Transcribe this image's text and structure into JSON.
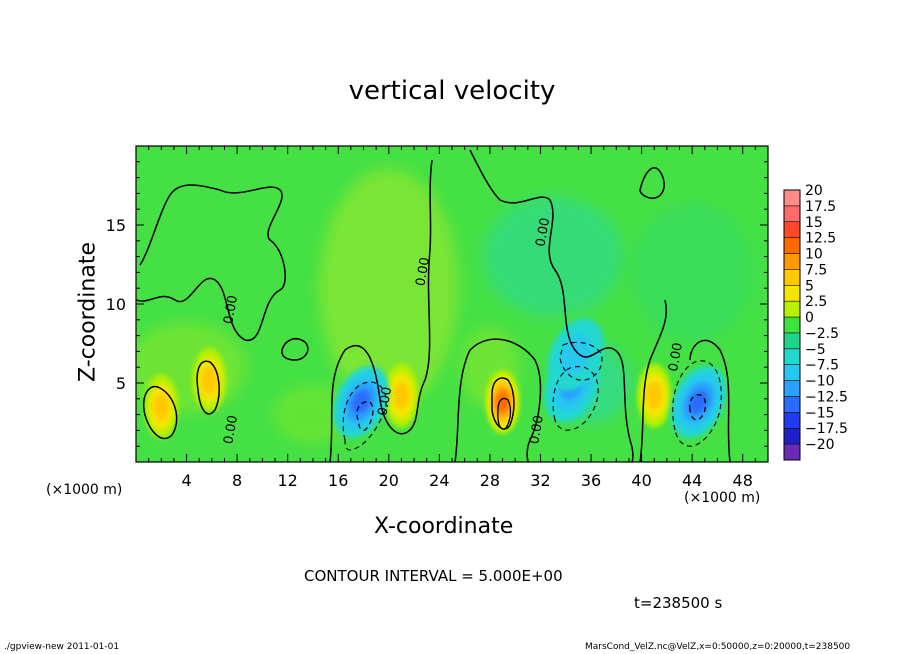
{
  "chart_data": {
    "type": "heatmap",
    "title": "vertical velocity",
    "xlabel": "X-coordinate",
    "ylabel": "Z-coordinate",
    "x_unit": "(×1000 m)",
    "xlim": [
      0,
      50
    ],
    "ylim": [
      0,
      20
    ],
    "xticks": [
      4,
      8,
      12,
      16,
      20,
      24,
      28,
      32,
      36,
      40,
      44,
      48
    ],
    "yticks": [
      5,
      10,
      15
    ],
    "contour_interval_label": "CONTOUR INTERVAL = 5.000E+00",
    "time_label": "t=238500 s",
    "colorbar": {
      "levels": [
        20,
        17.5,
        15,
        12.5,
        10,
        7.5,
        5,
        2.5,
        0,
        -2.5,
        -5,
        -7.5,
        -10,
        -12.5,
        -15,
        -17.5,
        -20
      ],
      "level_labels": [
        "20",
        "17.5",
        "15",
        "12.5",
        "10",
        "7.5",
        "5",
        "2.5",
        "0",
        "−2.5",
        "−5",
        "−7.5",
        "−10",
        "−12.5",
        "−15",
        "−17.5",
        "−20"
      ],
      "colors": [
        "#ff8c8c",
        "#ff6a6a",
        "#ff4a2a",
        "#ff6a00",
        "#ff9a00",
        "#ffc800",
        "#f5e600",
        "#b8f000",
        "#3ce33c",
        "#21d28a",
        "#22d8d0",
        "#26c8f0",
        "#2aa0ff",
        "#2a6cff",
        "#1f3cf0",
        "#2020c8",
        "#6a2ab8"
      ],
      "field_background": "#44e044"
    },
    "features": [
      {
        "kind": "updraft",
        "x": 2.0,
        "z": 3.5,
        "value": 7.5
      },
      {
        "kind": "updraft",
        "x": 5.8,
        "z": 5.2,
        "value": 7.5
      },
      {
        "kind": "updraft",
        "x": 21.0,
        "z": 4.2,
        "value": 7.5
      },
      {
        "kind": "updraft",
        "x": 29.0,
        "z": 3.8,
        "value": 12.5
      },
      {
        "kind": "updraft",
        "x": 41.0,
        "z": 4.2,
        "value": 7.5
      },
      {
        "kind": "downdraft",
        "x": 17.8,
        "z": 3.8,
        "value": -10
      },
      {
        "kind": "downdraft",
        "x": 34.5,
        "z": 4.8,
        "value": -7.5
      },
      {
        "kind": "downdraft",
        "x": 44.5,
        "z": 3.8,
        "value": -10
      },
      {
        "kind": "downdraft",
        "x": 34.8,
        "z": 6.8,
        "value": -5
      }
    ],
    "contour_labels": [
      {
        "text": "0.00",
        "x": 7.8,
        "z": 2.0
      },
      {
        "text": "0.00",
        "x": 7.8,
        "z": 9.6
      },
      {
        "text": "0.00",
        "x": 20.0,
        "z": 3.8
      },
      {
        "text": "0.00",
        "x": 23.0,
        "z": 12.0
      },
      {
        "text": "0.00",
        "x": 32.0,
        "z": 2.0
      },
      {
        "text": "0.00",
        "x": 32.5,
        "z": 14.5
      },
      {
        "text": "0.00",
        "x": 43.0,
        "z": 6.6
      }
    ]
  },
  "footer": {
    "left": "./gpview-new   2011-01-01",
    "right": "MarsCond_VelZ.nc@VelZ,x=0:50000,z=0:20000,t=238500"
  }
}
